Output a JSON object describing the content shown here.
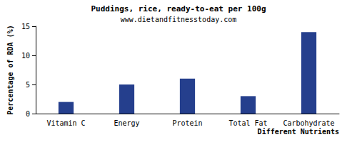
{
  "chart_data": {
    "type": "bar",
    "title": "Puddings, rice, ready-to-eat per 100g",
    "subtitle": "www.dietandfitnesstoday.com",
    "x_label": "Different Nutrients",
    "y_label": "Percentage of RDA (%)",
    "categories": [
      "Vitamin C",
      "Energy",
      "Protein",
      "Total Fat",
      "Carbohydrate"
    ],
    "values": [
      2,
      5,
      6,
      3,
      14
    ],
    "color": "#253f8d",
    "ylim": [
      0,
      15
    ],
    "yticks": [
      0,
      5,
      10,
      15
    ],
    "grid": false
  }
}
